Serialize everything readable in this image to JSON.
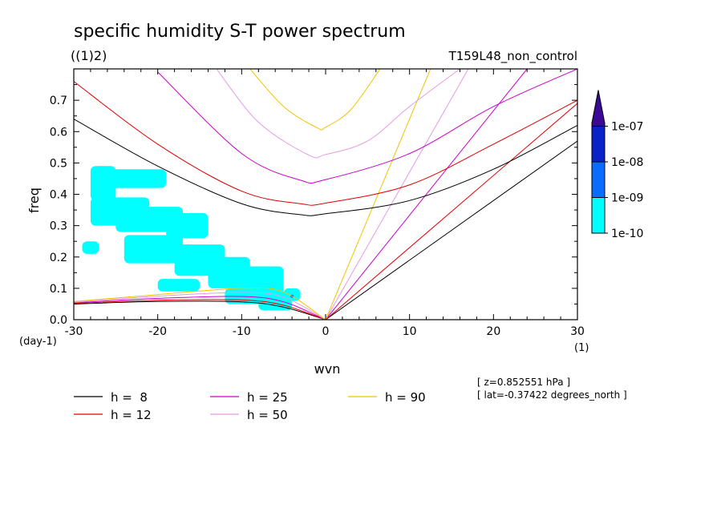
{
  "title": "specific humidity S-T power spectrum",
  "subtitle_left": "((1)2)",
  "subtitle_right": "T159L48_non_control",
  "chart_data": {
    "type": "heatmap",
    "xlabel": "wvn",
    "ylabel": "freq",
    "x_unit": "(1)",
    "y_unit": "(day-1)",
    "xlim": [
      -30,
      30
    ],
    "ylim": [
      0,
      0.8
    ],
    "xticks": [
      -30,
      -20,
      -10,
      0,
      10,
      20,
      30
    ],
    "xtick_labels": [
      "-30",
      "-20",
      "-10",
      "0",
      "10",
      "20",
      "30"
    ],
    "yticks": [
      0.0,
      0.1,
      0.2,
      0.3,
      0.4,
      0.5,
      0.6,
      0.7
    ],
    "ytick_labels": [
      "0.0",
      "0.1",
      "0.2",
      "0.3",
      "0.4",
      "0.5",
      "0.6",
      "0.7"
    ],
    "colorbar": {
      "labels": [
        "1e-10",
        "1e-09",
        "1e-08",
        "1e-07"
      ],
      "colors": [
        "#00ffff",
        "#0a6cff",
        "#0a23c8",
        "#3a0a96"
      ]
    },
    "shaded_regions": [
      {
        "level": "1e-10",
        "x": [
          -28,
          -25
        ],
        "y": [
          0.38,
          0.49
        ]
      },
      {
        "level": "1e-10",
        "x": [
          -26,
          -19
        ],
        "y": [
          0.42,
          0.48
        ]
      },
      {
        "level": "1e-10",
        "x": [
          -28,
          -21
        ],
        "y": [
          0.3,
          0.39
        ]
      },
      {
        "level": "1e-10",
        "x": [
          -25,
          -17
        ],
        "y": [
          0.28,
          0.36
        ]
      },
      {
        "level": "1e-10",
        "x": [
          -19,
          -14
        ],
        "y": [
          0.26,
          0.34
        ]
      },
      {
        "level": "1e-10",
        "x": [
          -24,
          -17
        ],
        "y": [
          0.18,
          0.27
        ]
      },
      {
        "level": "1e-10",
        "x": [
          -18,
          -12
        ],
        "y": [
          0.14,
          0.24
        ]
      },
      {
        "level": "1e-10",
        "x": [
          -14,
          -9
        ],
        "y": [
          0.1,
          0.2
        ]
      },
      {
        "level": "1e-10",
        "x": [
          -10,
          -5
        ],
        "y": [
          0.08,
          0.17
        ]
      },
      {
        "level": "1e-10",
        "x": [
          -29,
          -27
        ],
        "y": [
          0.21,
          0.25
        ]
      },
      {
        "level": "1e-10",
        "x": [
          -20,
          -15
        ],
        "y": [
          0.09,
          0.13
        ]
      },
      {
        "level": "1e-10",
        "x": [
          -12,
          -7
        ],
        "y": [
          0.05,
          0.1
        ]
      },
      {
        "level": "1e-10",
        "x": [
          -8,
          -4
        ],
        "y": [
          0.03,
          0.09
        ]
      },
      {
        "level": "1e-10",
        "x": [
          -5,
          -3
        ],
        "y": [
          0.06,
          0.1
        ]
      },
      {
        "level": "1e-09",
        "x": [
          -4.2,
          -3.8
        ],
        "y": [
          0.07,
          0.08
        ]
      }
    ],
    "series": [
      {
        "name": "h =  8",
        "h": 8,
        "color": "#000000"
      },
      {
        "name": "h = 12",
        "h": 12,
        "color": "#e00000"
      },
      {
        "name": "h = 25",
        "h": 25,
        "color": "#cc00cc"
      },
      {
        "name": "h = 50",
        "h": 50,
        "color": "#e49be4"
      },
      {
        "name": "h = 90",
        "h": 90,
        "color": "#f0c400"
      }
    ],
    "dispersion_lines": [
      {
        "kind": "kelvin",
        "h": 8,
        "color": "#000000",
        "x": [
          0,
          30
        ],
        "y": [
          0,
          0.57
        ]
      },
      {
        "kind": "kelvin",
        "h": 12,
        "color": "#e00000",
        "x": [
          0,
          30
        ],
        "y": [
          0,
          0.69
        ]
      },
      {
        "kind": "kelvin",
        "h": 25,
        "color": "#cc00cc",
        "x": [
          0,
          24
        ],
        "y": [
          0,
          0.8
        ]
      },
      {
        "kind": "kelvin",
        "h": 50,
        "color": "#e49be4",
        "x": [
          0,
          17
        ],
        "y": [
          0,
          0.8
        ]
      },
      {
        "kind": "kelvin",
        "h": 90,
        "color": "#f0c400",
        "x": [
          0,
          12.5
        ],
        "y": [
          0,
          0.8
        ]
      },
      {
        "kind": "rossby",
        "h": 8,
        "color": "#000000",
        "x": [
          -30,
          -20,
          -10,
          -5,
          0
        ],
        "y": [
          0.05,
          0.058,
          0.057,
          0.04,
          0
        ]
      },
      {
        "kind": "rossby",
        "h": 12,
        "color": "#e00000",
        "x": [
          -30,
          -20,
          -10,
          -5,
          0
        ],
        "y": [
          0.052,
          0.062,
          0.063,
          0.046,
          0
        ]
      },
      {
        "kind": "rossby",
        "h": 25,
        "color": "#cc00cc",
        "x": [
          -30,
          -20,
          -10,
          -5,
          0
        ],
        "y": [
          0.054,
          0.068,
          0.074,
          0.057,
          0
        ]
      },
      {
        "kind": "rossby",
        "h": 50,
        "color": "#e49be4",
        "x": [
          -30,
          -20,
          -10,
          -5,
          0
        ],
        "y": [
          0.056,
          0.075,
          0.087,
          0.072,
          0
        ]
      },
      {
        "kind": "rossby",
        "h": 90,
        "color": "#f0c400",
        "x": [
          -30,
          -20,
          -10,
          -5,
          0
        ],
        "y": [
          0.058,
          0.08,
          0.1,
          0.088,
          0
        ]
      },
      {
        "kind": "wig",
        "h": 8,
        "color": "#000000",
        "x": [
          -30,
          -20,
          -10,
          -3,
          0,
          10,
          20,
          30
        ],
        "y": [
          0.64,
          0.49,
          0.37,
          0.335,
          0.338,
          0.38,
          0.48,
          0.62
        ]
      },
      {
        "kind": "wig",
        "h": 12,
        "color": "#e00000",
        "x": [
          -30,
          -20,
          -10,
          -3,
          0,
          10,
          20,
          30
        ],
        "y": [
          0.76,
          0.56,
          0.41,
          0.37,
          0.372,
          0.43,
          0.56,
          0.7
        ]
      },
      {
        "kind": "wig",
        "h": 25,
        "color": "#cc00cc",
        "x": [
          -20,
          -10,
          -3,
          0,
          10,
          20,
          30
        ],
        "y": [
          0.79,
          0.53,
          0.445,
          0.447,
          0.53,
          0.68,
          0.8
        ]
      },
      {
        "kind": "wig",
        "h": 50,
        "color": "#e49be4",
        "x": [
          -13,
          -8,
          -2,
          0,
          5,
          10,
          16
        ],
        "y": [
          0.8,
          0.63,
          0.525,
          0.527,
          0.57,
          0.68,
          0.8
        ]
      },
      {
        "kind": "wig",
        "h": 90,
        "color": "#f0c400",
        "x": [
          -9,
          -5,
          -1,
          0,
          3,
          6.5
        ],
        "y": [
          0.8,
          0.68,
          0.612,
          0.614,
          0.67,
          0.8
        ]
      }
    ]
  },
  "legend": [
    {
      "label": "h =  8",
      "color": "#000000"
    },
    {
      "label": "h = 12",
      "color": "#e00000"
    },
    {
      "label": "h = 25",
      "color": "#cc00cc"
    },
    {
      "label": "h = 50",
      "color": "#e49be4"
    },
    {
      "label": "h = 90",
      "color": "#f0c400"
    }
  ],
  "info": {
    "z": "[ z=0.852551 hPa ]",
    "lat": "[ lat=-0.37422 degrees_north ]"
  }
}
